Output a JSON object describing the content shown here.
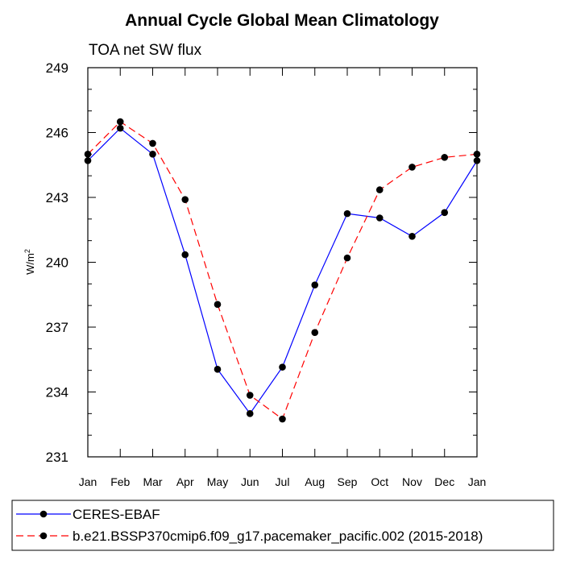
{
  "chart_data": {
    "type": "line",
    "title": "Annual Cycle Global Mean Climatology",
    "subtitle": "TOA net SW flux",
    "ylabel_main": "W/m",
    "ylabel_sup": "2",
    "ylim": [
      231,
      249
    ],
    "yticks": [
      "231",
      "234",
      "237",
      "240",
      "243",
      "246",
      "249"
    ],
    "categories": [
      "Jan",
      "Feb",
      "Mar",
      "Apr",
      "May",
      "Jun",
      "Jul",
      "Aug",
      "Sep",
      "Oct",
      "Nov",
      "Dec",
      "Jan"
    ],
    "grid": false,
    "legend_position": "bottom",
    "series": [
      {
        "name": "CERES-EBAF",
        "color": "#0000ff",
        "dash": "solid",
        "values": [
          244.7,
          246.2,
          245.0,
          240.35,
          235.05,
          233.0,
          235.15,
          238.95,
          242.25,
          242.05,
          241.2,
          242.3,
          244.7
        ]
      },
      {
        "name": "b.e21.BSSP370cmip6.f09_g17.pacemaker_pacific.002 (2015-2018)",
        "color": "#ff0000",
        "dash": "dashed",
        "values": [
          245.0,
          246.5,
          245.5,
          242.9,
          238.05,
          233.85,
          232.75,
          236.75,
          240.2,
          243.35,
          244.4,
          244.85,
          245.0
        ]
      }
    ]
  }
}
